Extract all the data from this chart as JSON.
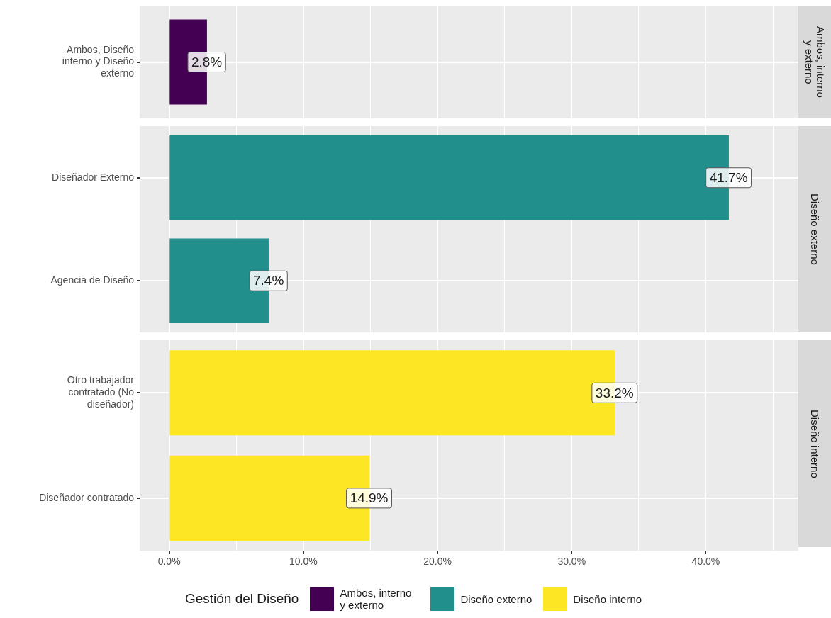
{
  "chart_data": [
    {
      "type": "bar",
      "orientation": "horizontal",
      "categories": [
        "Ambos, Diseño interno y Diseño externo"
      ],
      "series": [
        {
          "name": "Ambos, interno y externo",
          "color": "#440154",
          "values": [
            2.8
          ],
          "value_labels": [
            "2.8%"
          ]
        }
      ],
      "y2label": "Ambos, interno y externo",
      "xlim": [
        -2.2,
        46.9
      ],
      "xticks": [
        0,
        5,
        10,
        15,
        20,
        25,
        30,
        35,
        40,
        45
      ],
      "grid": true,
      "tick_labels": "y"
    },
    {
      "type": "bar",
      "orientation": "horizontal",
      "categories": [
        "Diseñador Externo",
        "Agencia de Diseño"
      ],
      "series": [
        {
          "name": "Diseño externo",
          "color": "#21908c",
          "values": [
            41.7,
            7.4
          ],
          "value_labels": [
            "41.7%",
            "7.4%"
          ]
        }
      ],
      "y2label": "Diseño externo",
      "xlim": [
        -2.2,
        46.9
      ],
      "xticks": [
        0,
        5,
        10,
        15,
        20,
        25,
        30,
        35,
        40,
        45
      ],
      "grid": true,
      "tick_labels": "y"
    },
    {
      "type": "bar",
      "orientation": "horizontal",
      "categories": [
        "Otro trabajador contratado (No diseñador)",
        "Diseñador contratado"
      ],
      "series": [
        {
          "name": "Diseño interno",
          "color": "#fde725",
          "values": [
            33.2,
            14.9
          ],
          "value_labels": [
            "33.2%",
            "14.9%"
          ]
        }
      ],
      "y2label": "Diseño interno",
      "xlim": [
        -2.2,
        46.9
      ],
      "xticks": [
        {
          "value": 0,
          "label": "0.0%"
        },
        {
          "value": 5,
          "label": null
        },
        {
          "value": 10,
          "label": "10.0%"
        },
        {
          "value": 15,
          "label": null
        },
        {
          "value": 20,
          "label": "20.0%"
        },
        {
          "value": 25,
          "label": null
        },
        {
          "value": 30,
          "label": "30.0%"
        },
        {
          "value": 35,
          "label": null
        },
        {
          "value": 40,
          "label": "40.0%"
        },
        {
          "value": 45,
          "label": null
        }
      ],
      "grid": true,
      "legend": "bottom",
      "legend_title": "Gestión del Diseño"
    }
  ]
}
